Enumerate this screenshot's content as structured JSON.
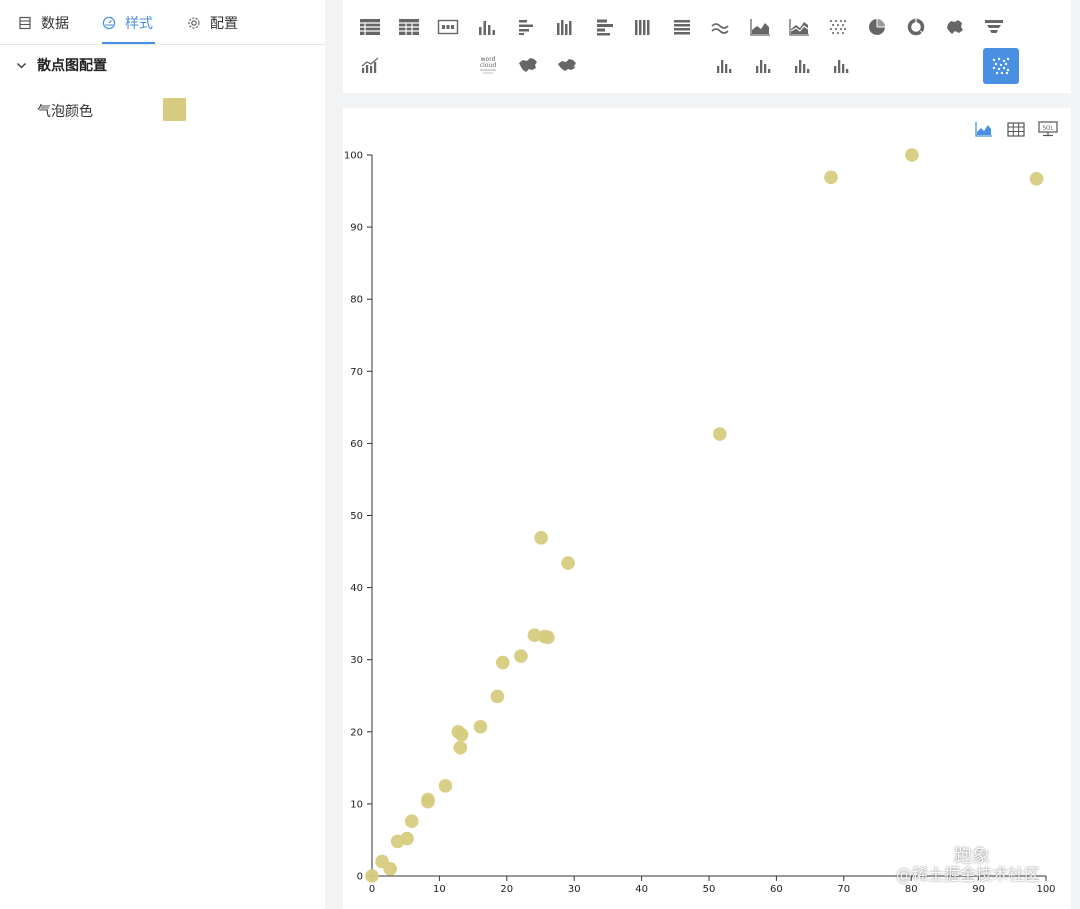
{
  "tabs": [
    {
      "label": "数据",
      "icon": "table-icon"
    },
    {
      "label": "样式",
      "icon": "palette-icon"
    },
    {
      "label": "配置",
      "icon": "gear-icon"
    }
  ],
  "active_tab": "样式",
  "style_panel": {
    "section_title": "散点图配置",
    "bubble_color_label": "气泡颜色",
    "bubble_color": "#d6cb7e"
  },
  "accent_color": "#4a90e2",
  "toolbar": {
    "row1": [
      "table-icon",
      "pivot-table-icon",
      "number-card-icon",
      "bar-chart-icon",
      "horizontal-bar-icon",
      "grouped-bar-icon",
      "stacked-horizontal-bar-icon",
      "column-stack-icon",
      "list-icon",
      "wave-line-icon",
      "area-chart-icon",
      "stacked-area-icon",
      "dot-matrix-icon",
      "pie-chart-icon",
      "donut-chart-icon",
      "map-icon",
      "funnel-icon"
    ],
    "row2": [
      "combo-chart-icon",
      "word-cloud-icon",
      "china-map-icon",
      "china-map-alt-icon",
      "bar-chart-small-1-icon",
      "bar-chart-small-2-icon",
      "bar-chart-small-3-icon",
      "bar-chart-small-4-icon",
      "scatter-chart-icon"
    ],
    "word_cloud_text": "word cloud",
    "active": "scatter-chart-icon"
  },
  "view_buttons": [
    "chart-view-icon",
    "table-view-icon",
    "sql-view-icon"
  ],
  "view_sql_label": "SQL",
  "chart_data": {
    "type": "scatter",
    "title": "",
    "xlabel": "",
    "ylabel": "",
    "xlim": [
      0,
      100
    ],
    "ylim": [
      0,
      100
    ],
    "x_ticks": [
      0,
      10,
      20,
      30,
      40,
      50,
      60,
      70,
      80,
      90,
      100
    ],
    "y_ticks": [
      0,
      10,
      20,
      30,
      40,
      50,
      60,
      70,
      80,
      90,
      100
    ],
    "color": "#d6cb7e",
    "points": [
      {
        "x": 0,
        "y": 0
      },
      {
        "x": 1.5,
        "y": 2
      },
      {
        "x": 2.7,
        "y": 1
      },
      {
        "x": 3.8,
        "y": 4.8
      },
      {
        "x": 5.2,
        "y": 5.2
      },
      {
        "x": 5.9,
        "y": 7.6
      },
      {
        "x": 8.3,
        "y": 10.3
      },
      {
        "x": 8.3,
        "y": 10.6
      },
      {
        "x": 10.9,
        "y": 12.5
      },
      {
        "x": 12.8,
        "y": 20
      },
      {
        "x": 13.3,
        "y": 19.6
      },
      {
        "x": 13.1,
        "y": 17.8
      },
      {
        "x": 16.1,
        "y": 20.7
      },
      {
        "x": 18.6,
        "y": 24.9
      },
      {
        "x": 19.4,
        "y": 29.6
      },
      {
        "x": 22.1,
        "y": 30.5
      },
      {
        "x": 24.1,
        "y": 33.4
      },
      {
        "x": 25.6,
        "y": 33.2
      },
      {
        "x": 26.1,
        "y": 33.1
      },
      {
        "x": 25.1,
        "y": 46.9
      },
      {
        "x": 29.1,
        "y": 43.4
      },
      {
        "x": 51.6,
        "y": 61.3
      },
      {
        "x": 68.1,
        "y": 96.9
      },
      {
        "x": 80.1,
        "y": 100
      },
      {
        "x": 98.6,
        "y": 96.7
      }
    ]
  },
  "watermark": {
    "line1": "跑象",
    "line2": "@稀土掘金技术社区"
  }
}
